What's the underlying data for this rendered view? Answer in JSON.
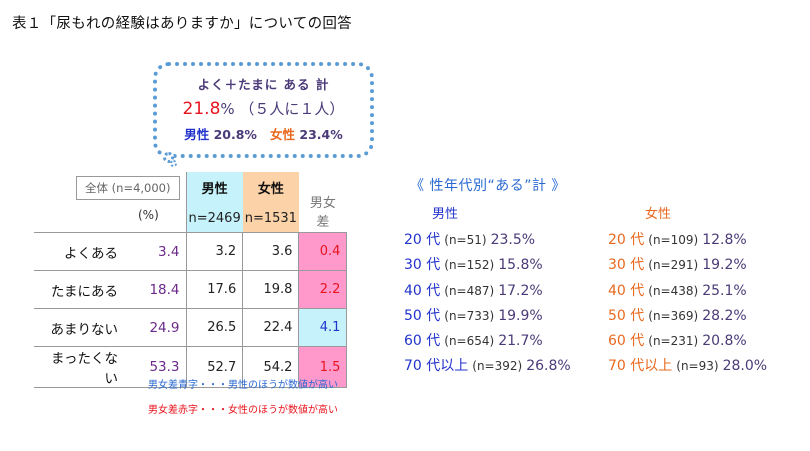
{
  "title": "表１「尿もれの経験はありますか」についての回答",
  "bubble": {
    "line1": "よく＋たまに ある 計",
    "big_pct": "21.8",
    "rest": "% （５人に１人）",
    "male_label": "男性",
    "male_pct": "20.8%",
    "female_label": "女性",
    "female_pct": "23.4%"
  },
  "table": {
    "all_label": "全体 (n=4,000)",
    "unit": "(%)",
    "male_header": "男性",
    "male_n": "n=2469",
    "female_header": "女性",
    "female_n": "n=1531",
    "diff_header": "男女差",
    "rows": [
      {
        "label": "よくある",
        "total": "3.4",
        "male": "3.2",
        "female": "3.6",
        "diff": "0.4",
        "diff_color": "pink"
      },
      {
        "label": "たまにある",
        "total": "18.4",
        "male": "17.6",
        "female": "19.8",
        "diff": "2.2",
        "diff_color": "pink"
      },
      {
        "label": "あまりない",
        "total": "24.9",
        "male": "26.5",
        "female": "22.4",
        "diff": "4.1",
        "diff_color": "blue"
      },
      {
        "label": "まったくない",
        "total": "53.3",
        "male": "52.7",
        "female": "54.2",
        "diff": "1.5",
        "diff_color": "pink"
      }
    ]
  },
  "notes": {
    "blue": "男女差青字・・・男性のほうが数値が高い",
    "red": "男女差赤字・・・女性のほうが数値が高い"
  },
  "by_age": {
    "title": "《 性年代別“ある”計 》",
    "male_label": "男性",
    "female_label": "女性",
    "male": [
      {
        "age": "20 代",
        "n": "(n=51)",
        "pct": "23.5%"
      },
      {
        "age": "30 代",
        "n": "(n=152)",
        "pct": "15.8%"
      },
      {
        "age": "40 代",
        "n": "(n=487)",
        "pct": "17.2%"
      },
      {
        "age": "50 代",
        "n": "(n=733)",
        "pct": "19.9%"
      },
      {
        "age": "60 代",
        "n": "(n=654)",
        "pct": "21.7%"
      },
      {
        "age": "70 代以上",
        "n": "(n=392)",
        "pct": "26.8%"
      }
    ],
    "female": [
      {
        "age": "20 代",
        "n": "(n=109)",
        "pct": "12.8%"
      },
      {
        "age": "30 代",
        "n": "(n=291)",
        "pct": "19.2%"
      },
      {
        "age": "40 代",
        "n": "(n=438)",
        "pct": "25.1%"
      },
      {
        "age": "50 代",
        "n": "(n=369)",
        "pct": "28.2%"
      },
      {
        "age": "60 代",
        "n": "(n=231)",
        "pct": "20.8%"
      },
      {
        "age": "70 代以上",
        "n": "(n=93)",
        "pct": "28.0%"
      }
    ]
  },
  "colors": {
    "male": "#2233cc",
    "female": "#e8681e",
    "red": "#e8141e",
    "pink_bg": "#ff99cc",
    "blue_bg": "#c6f3fb",
    "bubble_border": "#5b9bd5"
  }
}
